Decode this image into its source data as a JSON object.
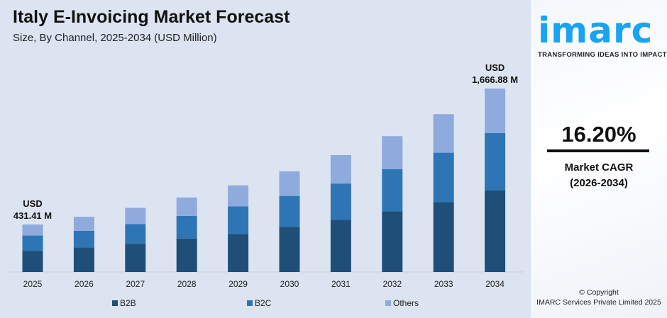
{
  "header": {
    "title": "Italy E-Invoicing Market Forecast",
    "subtitle": "Size, By Channel, 2025-2034 (USD Million)"
  },
  "chart_data": {
    "type": "bar",
    "stacked": true,
    "title": "Italy E-Invoicing Market Forecast",
    "subtitle": "Size, By Channel, 2025-2034 (USD Million)",
    "categories": [
      "2025",
      "2026",
      "2027",
      "2028",
      "2029",
      "2030",
      "2031",
      "2032",
      "2033",
      "2034"
    ],
    "series": [
      {
        "name": "B2B",
        "color": "#1f4e79",
        "values": [
          190.0,
          222.8,
          256.3,
          304.2,
          345.5,
          410.2,
          475.1,
          552.2,
          634.4,
          740.1
        ]
      },
      {
        "name": "B2C",
        "color": "#2e75b6",
        "values": [
          141.0,
          151.2,
          178.6,
          205.4,
          249.9,
          280.6,
          328.4,
          381.8,
          449.4,
          521.3
        ]
      },
      {
        "name": "Others",
        "color": "#8faadc",
        "values": [
          100.4,
          127.3,
          147.6,
          167.3,
          191.1,
          223.1,
          258.5,
          300.0,
          350.2,
          405.5
        ]
      }
    ],
    "annotations": [
      {
        "category": "2025",
        "line1": "USD",
        "line2": "431.41 M"
      },
      {
        "category": "2034",
        "line1": "USD",
        "line2": "1,666.88 M"
      }
    ],
    "legend": "bottom",
    "grid": false,
    "ylim": [
      0,
      1666.88
    ]
  },
  "side": {
    "logo": "imarc",
    "tagline": "TRANSFORMING IDEAS INTO IMPACT",
    "cagr": "16.20%",
    "cagr_label": "Market CAGR",
    "cagr_period": "(2026-2034)",
    "copyright": "© Copyright",
    "company": "IMARC Services Private Limited 2025"
  }
}
